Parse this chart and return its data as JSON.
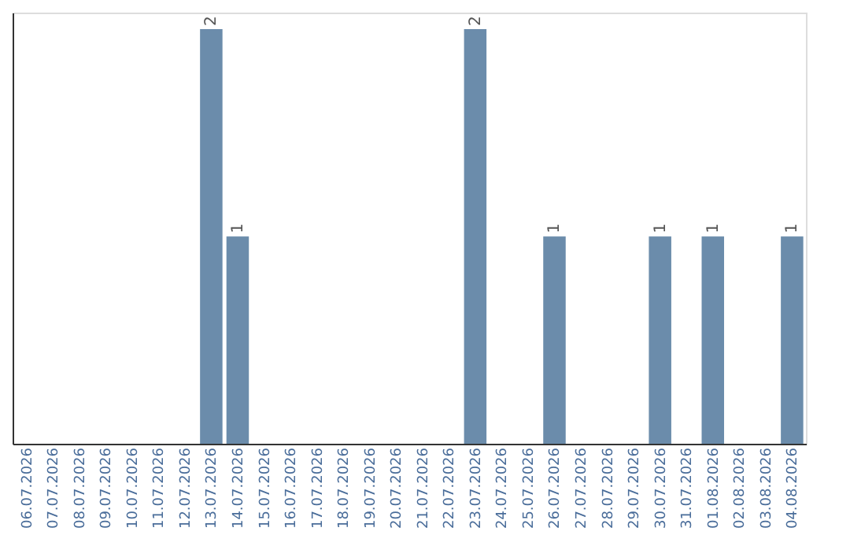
{
  "chart_data": {
    "type": "bar",
    "categories": [
      "06.07.2026",
      "07.07.2026",
      "08.07.2026",
      "09.07.2026",
      "10.07.2026",
      "11.07.2026",
      "12.07.2026",
      "13.07.2026",
      "14.07.2026",
      "15.07.2026",
      "16.07.2026",
      "17.07.2026",
      "18.07.2026",
      "19.07.2026",
      "20.07.2026",
      "21.07.2026",
      "22.07.2026",
      "23.07.2026",
      "24.07.2026",
      "25.07.2026",
      "26.07.2026",
      "27.07.2026",
      "28.07.2026",
      "29.07.2026",
      "30.07.2026",
      "31.07.2026",
      "01.08.2026",
      "02.08.2026",
      "03.08.2026",
      "04.08.2026"
    ],
    "values": [
      0,
      0,
      0,
      0,
      0,
      0,
      0,
      2,
      1,
      0,
      0,
      0,
      0,
      0,
      0,
      0,
      0,
      2,
      0,
      0,
      1,
      0,
      0,
      0,
      1,
      0,
      1,
      0,
      0,
      1
    ],
    "value_labels": [
      null,
      null,
      null,
      null,
      null,
      null,
      null,
      "2",
      "1",
      null,
      null,
      null,
      null,
      null,
      null,
      null,
      null,
      "2",
      null,
      null,
      "1",
      null,
      null,
      null,
      "1",
      null,
      "1",
      null,
      null,
      "1"
    ],
    "color": "#6b8cab",
    "ylim": [
      0,
      2.08
    ],
    "tick_labels": "x",
    "grid": false
  }
}
